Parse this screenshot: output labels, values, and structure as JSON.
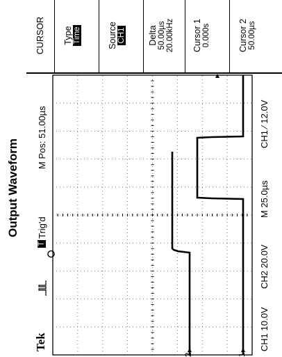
{
  "page": {
    "title": "Output Waveform"
  },
  "scope": {
    "brand": "Tek",
    "trigger_mode_icon": "trigger-icon",
    "trigger_status_badge": "T",
    "trigger_status": "Trig'd",
    "position": "M Pos: 51.00µs",
    "status": {
      "ch1_scale": "CH1  10.0V",
      "ch2_scale": "CH2  20.0V",
      "timebase": "M 25.0µs",
      "trigger": "CH1  ∕  12.0V"
    },
    "markers": {
      "ch1": "1",
      "ch2": "2"
    }
  },
  "menu": {
    "title": "CURSOR",
    "items": [
      {
        "label": "Type",
        "value": "Time",
        "highlight": true
      },
      {
        "label": "Source",
        "value": "CH1",
        "highlight": true
      },
      {
        "label": "Delta",
        "value": "50.00µs",
        "value2": "20.00kHz"
      },
      {
        "label": "Cursor 1",
        "value": "0.000s"
      },
      {
        "label": "Cursor 2",
        "value": "50.00µs"
      }
    ]
  },
  "colors": {
    "trace": "#000000",
    "grid": "#555555"
  }
}
